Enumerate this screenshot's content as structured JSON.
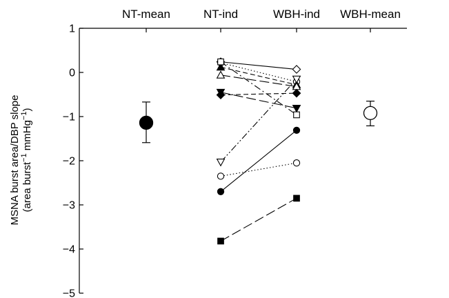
{
  "chart_data": {
    "type": "scatter",
    "categories": [
      "NT-mean",
      "NT-ind",
      "WBH-ind",
      "WBH-mean"
    ],
    "ylabel_line1": "MSNA burst area/DBP slope",
    "ylabel_line2_parts": [
      "(area burst",
      "−1",
      " mmHg",
      "−1",
      ")"
    ],
    "ylim": [
      -5,
      1
    ],
    "yticks": [
      1,
      0,
      -1,
      -2,
      -3,
      -4,
      -5
    ],
    "ytick_labels": [
      "1",
      "0",
      "−1",
      "−2",
      "−3",
      "−4",
      "−5"
    ],
    "grid": false,
    "means": [
      {
        "category": "NT-mean",
        "value": -1.14,
        "err_low": -1.59,
        "err_high": -0.67,
        "filled": true
      },
      {
        "category": "WBH-mean",
        "value": -0.92,
        "err_low": -1.21,
        "err_high": -0.65,
        "filled": false
      }
    ],
    "individuals": [
      {
        "nt": 0.24,
        "wbh": 0.07,
        "marker": "diamond",
        "filled": false,
        "line": "solid"
      },
      {
        "nt": 0.22,
        "wbh": -0.21,
        "marker": "circle",
        "filled": false,
        "line": "dotted"
      },
      {
        "nt": 0.12,
        "wbh": -0.28,
        "marker": "triangle-up",
        "filled": true,
        "line": "dashed"
      },
      {
        "nt": -0.06,
        "wbh": -0.32,
        "marker": "triangle-up",
        "filled": false,
        "line": "long-dash"
      },
      {
        "nt": -0.45,
        "wbh": -0.81,
        "marker": "triangle-down",
        "filled": true,
        "line": "long-dash"
      },
      {
        "nt": -0.51,
        "wbh": -0.47,
        "marker": "diamond",
        "filled": true,
        "line": "dashed"
      },
      {
        "nt": 0.24,
        "wbh": -0.96,
        "marker": "square",
        "filled": false,
        "line": "dash-dot"
      },
      {
        "nt": -2.03,
        "wbh": -0.15,
        "marker": "triangle-down",
        "filled": false,
        "line": "dash-dot-dot"
      },
      {
        "nt": -2.35,
        "wbh": -2.05,
        "marker": "circle",
        "filled": false,
        "line": "dotted"
      },
      {
        "nt": -2.7,
        "wbh": -1.31,
        "marker": "circle",
        "filled": true,
        "line": "solid"
      },
      {
        "nt": -3.82,
        "wbh": -2.85,
        "marker": "square",
        "filled": true,
        "line": "long-dash"
      }
    ]
  }
}
